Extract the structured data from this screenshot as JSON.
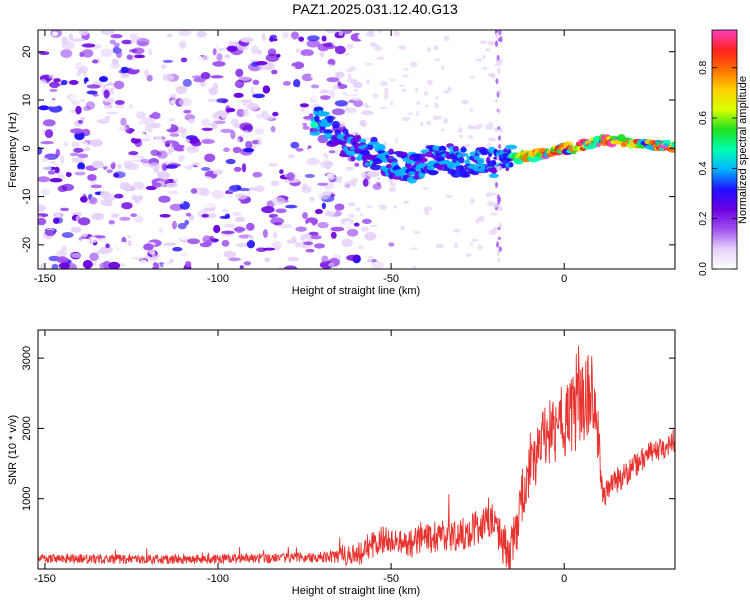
{
  "title": "PAZ1.2025.031.12.40.G13",
  "chart_data": [
    {
      "type": "heatmap",
      "xlabel": "Height of straight line (km)",
      "ylabel": "Frequency (Hz)",
      "xlim": [
        -152,
        32
      ],
      "ylim": [
        -25,
        24.5
      ],
      "xticks": [
        -150,
        -100,
        -50,
        0
      ],
      "yticks": [
        -20,
        -10,
        0,
        10,
        20
      ],
      "grid": false,
      "colorbar": {
        "label": "Normalized spectral amplitude",
        "range": [
          0,
          0.95
        ],
        "ticks": [
          "0.0",
          "0.2",
          "0.4",
          "0.6",
          "0.8"
        ],
        "colors": [
          "#ffffff",
          "#e6d2f8",
          "#a050f0",
          "#6a00e0",
          "#2010ff",
          "#00b4ff",
          "#00ffb0",
          "#20e020",
          "#d8ff00",
          "#ffd000",
          "#ff7000",
          "#ff2020",
          "#ff40c0"
        ]
      },
      "ridge": [
        [
          -70,
          5.5
        ],
        [
          -62,
          0
        ],
        [
          -55,
          -1
        ],
        [
          -50,
          -3
        ],
        [
          -45,
          -4
        ],
        [
          -40,
          -3
        ],
        [
          -35,
          -1.5
        ],
        [
          -30,
          -3
        ],
        [
          -25,
          -3
        ],
        [
          -20,
          -3
        ],
        [
          -17,
          -3
        ],
        [
          -14,
          -2
        ],
        [
          -10,
          -1.5
        ],
        [
          -5,
          -1
        ],
        [
          0,
          0
        ],
        [
          5,
          0.5
        ],
        [
          10,
          1.5
        ],
        [
          15,
          1.5
        ],
        [
          20,
          1.2
        ],
        [
          25,
          0.5
        ],
        [
          30,
          0.5
        ]
      ]
    },
    {
      "type": "line",
      "xlabel": "Height of straight line (km)",
      "ylabel": "SNR (10 * v/v)",
      "xlim": [
        -152,
        32
      ],
      "ylim": [
        0,
        3400
      ],
      "xticks": [
        -150,
        -100,
        -50,
        0
      ],
      "yticks": [
        1000,
        2000,
        3000
      ],
      "grid": false,
      "series": [
        {
          "color": "#e8322e",
          "envelope": [
            [
              -152,
              150
            ],
            [
              -130,
              140
            ],
            [
              -110,
              140
            ],
            [
              -90,
              150
            ],
            [
              -70,
              170
            ],
            [
              -60,
              200
            ],
            [
              -56,
              330
            ],
            [
              -52,
              420
            ],
            [
              -45,
              360
            ],
            [
              -40,
              440
            ],
            [
              -35,
              460
            ],
            [
              -30,
              480
            ],
            [
              -25,
              600
            ],
            [
              -20,
              700
            ],
            [
              -18,
              330
            ],
            [
              -15,
              300
            ],
            [
              -13,
              800
            ],
            [
              -10,
              1500
            ],
            [
              -5,
              1900
            ],
            [
              0,
              2100
            ],
            [
              5,
              2350
            ],
            [
              9,
              2500
            ],
            [
              11,
              1050
            ],
            [
              15,
              1250
            ],
            [
              20,
              1450
            ],
            [
              25,
              1650
            ],
            [
              32,
              1800
            ]
          ],
          "spread": [
            [
              -152,
              130
            ],
            [
              -70,
              150
            ],
            [
              -56,
              400
            ],
            [
              -20,
              500
            ],
            [
              -13,
              800
            ],
            [
              9,
              1300
            ],
            [
              11,
              400
            ],
            [
              32,
              300
            ]
          ]
        }
      ]
    }
  ]
}
